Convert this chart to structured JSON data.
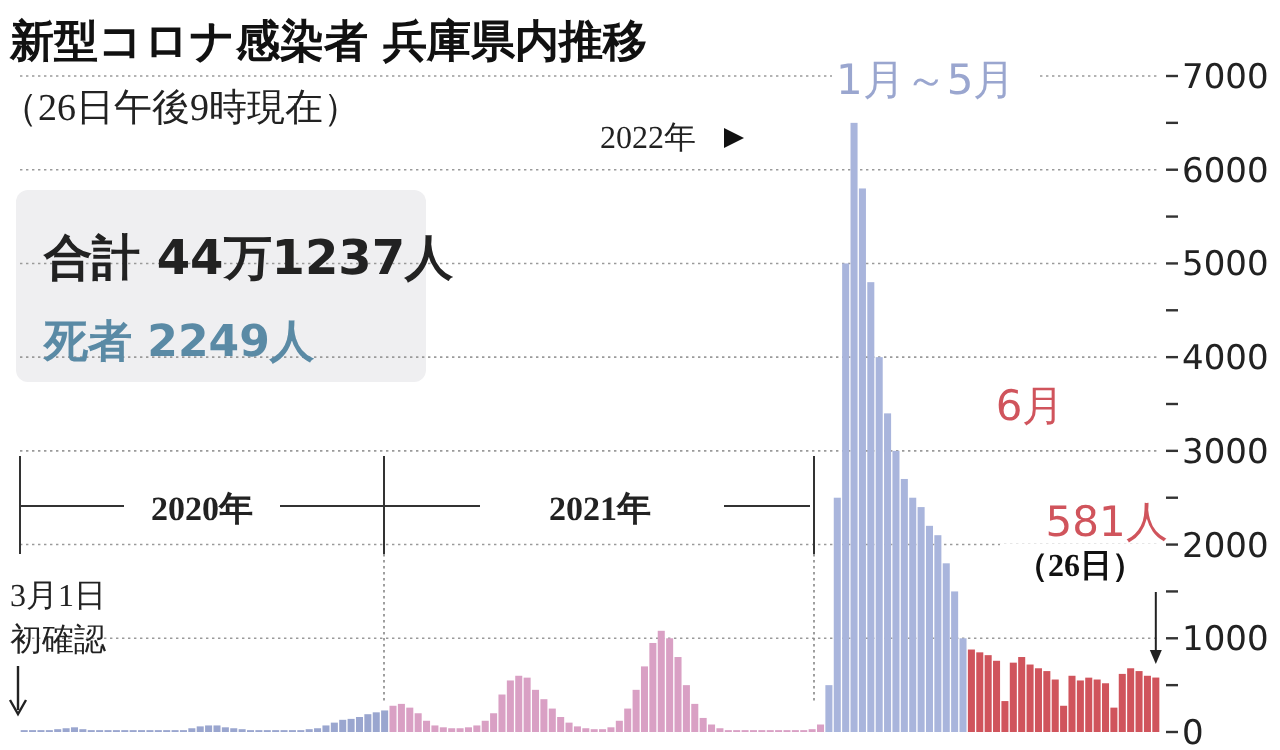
{
  "chart_data": {
    "type": "bar",
    "title": "新型コロナ感染者 兵庫県内推移",
    "subtitle": "（26日午後9時現在）",
    "categories": [
      null,
      null,
      null,
      null,
      null,
      null,
      null,
      null,
      null,
      null,
      null,
      null,
      null,
      null,
      null,
      null,
      null,
      null,
      null,
      null,
      null,
      null,
      null,
      null,
      null,
      null,
      null,
      null,
      null,
      null,
      null,
      null,
      null,
      null,
      null,
      null,
      null,
      null,
      null,
      null,
      null,
      null,
      null,
      null,
      null,
      null,
      null,
      null,
      null,
      null,
      null,
      null,
      null,
      null,
      null,
      null,
      null,
      null,
      null,
      null,
      null,
      null,
      null,
      null,
      null,
      null,
      null,
      null,
      null,
      null,
      null,
      null,
      null,
      null,
      null,
      null,
      null,
      null,
      null,
      null,
      null,
      null,
      null,
      null,
      null,
      null,
      null,
      null,
      null,
      null,
      null,
      null,
      null,
      null,
      null,
      null,
      null,
      null,
      null,
      null,
      null,
      null,
      null,
      null,
      null,
      null,
      null,
      null,
      null,
      null,
      null,
      null,
      null,
      null,
      null,
      null,
      null,
      null,
      null,
      null,
      null,
      null,
      null,
      null,
      null,
      null,
      null,
      null,
      null,
      null,
      null,
      null,
      null,
      null,
      null,
      null
    ],
    "values": [
      20,
      20,
      20,
      20,
      30,
      40,
      50,
      30,
      20,
      20,
      20,
      20,
      20,
      20,
      20,
      20,
      20,
      20,
      20,
      20,
      40,
      60,
      70,
      70,
      50,
      40,
      30,
      20,
      20,
      20,
      20,
      20,
      20,
      20,
      30,
      40,
      70,
      100,
      130,
      140,
      160,
      190,
      210,
      230,
      280,
      300,
      260,
      200,
      120,
      70,
      50,
      40,
      40,
      50,
      70,
      120,
      200,
      400,
      550,
      600,
      580,
      450,
      350,
      250,
      160,
      100,
      60,
      40,
      30,
      30,
      50,
      120,
      250,
      450,
      700,
      950,
      1080,
      1000,
      800,
      500,
      300,
      150,
      80,
      40,
      20,
      20,
      20,
      20,
      20,
      20,
      20,
      20,
      20,
      20,
      30,
      80,
      500,
      2500,
      5000,
      6500,
      5800,
      4800,
      4000,
      3400,
      3000,
      2700,
      2500,
      2400,
      2200,
      2100,
      1800,
      1500,
      1000,
      880,
      850,
      820,
      760,
      330,
      740,
      800,
      720,
      680,
      650,
      560,
      280,
      600,
      550,
      580,
      560,
      520,
      260,
      620,
      680,
      650,
      600,
      581
    ],
    "colors": [
      "#9aa6cf",
      "#9aa6cf",
      "#9aa6cf",
      "#9aa6cf",
      "#9aa6cf",
      "#9aa6cf",
      "#9aa6cf",
      "#9aa6cf",
      "#9aa6cf",
      "#9aa6cf",
      "#9aa6cf",
      "#9aa6cf",
      "#9aa6cf",
      "#9aa6cf",
      "#9aa6cf",
      "#9aa6cf",
      "#9aa6cf",
      "#9aa6cf",
      "#9aa6cf",
      "#9aa6cf",
      "#9aa6cf",
      "#9aa6cf",
      "#9aa6cf",
      "#9aa6cf",
      "#9aa6cf",
      "#9aa6cf",
      "#9aa6cf",
      "#9aa6cf",
      "#9aa6cf",
      "#9aa6cf",
      "#9aa6cf",
      "#9aa6cf",
      "#9aa6cf",
      "#9aa6cf",
      "#9aa6cf",
      "#9aa6cf",
      "#9aa6cf",
      "#9aa6cf",
      "#9aa6cf",
      "#9aa6cf",
      "#9aa6cf",
      "#9aa6cf",
      "#9aa6cf",
      "#9aa6cf",
      "#d9a0c4",
      "#d9a0c4",
      "#d9a0c4",
      "#d9a0c4",
      "#d9a0c4",
      "#d9a0c4",
      "#d9a0c4",
      "#d9a0c4",
      "#d9a0c4",
      "#d9a0c4",
      "#d9a0c4",
      "#d9a0c4",
      "#d9a0c4",
      "#d9a0c4",
      "#d9a0c4",
      "#d9a0c4",
      "#d9a0c4",
      "#d9a0c4",
      "#d9a0c4",
      "#d9a0c4",
      "#d9a0c4",
      "#d9a0c4",
      "#d9a0c4",
      "#d9a0c4",
      "#d9a0c4",
      "#d9a0c4",
      "#d9a0c4",
      "#d9a0c4",
      "#d9a0c4",
      "#d9a0c4",
      "#d9a0c4",
      "#d9a0c4",
      "#d9a0c4",
      "#d9a0c4",
      "#d9a0c4",
      "#d9a0c4",
      "#d9a0c4",
      "#d9a0c4",
      "#d9a0c4",
      "#d9a0c4",
      "#d9a0c4",
      "#d9a0c4",
      "#d9a0c4",
      "#d9a0c4",
      "#d9a0c4",
      "#d9a0c4",
      "#d9a0c4",
      "#d9a0c4",
      "#d9a0c4",
      "#d9a0c4",
      "#d9a0c4",
      "#d9a0c4",
      "#a9b5dc",
      "#a9b5dc",
      "#a9b5dc",
      "#a9b5dc",
      "#a9b5dc",
      "#a9b5dc",
      "#a9b5dc",
      "#a9b5dc",
      "#a9b5dc",
      "#a9b5dc",
      "#a9b5dc",
      "#a9b5dc",
      "#a9b5dc",
      "#a9b5dc",
      "#a9b5dc",
      "#a9b5dc",
      "#a9b5dc",
      "#d0545c",
      "#d0545c",
      "#d0545c",
      "#d0545c",
      "#d0545c",
      "#d0545c",
      "#d0545c",
      "#d0545c",
      "#d0545c",
      "#d0545c",
      "#d0545c",
      "#d0545c",
      "#d0545c",
      "#d0545c",
      "#d0545c",
      "#d0545c",
      "#d0545c",
      "#d0545c",
      "#d0545c",
      "#d0545c",
      "#d0545c",
      "#d0545c",
      "#d0545c"
    ],
    "value_labels": [
      null,
      null,
      null,
      null,
      null,
      null,
      null,
      null,
      null,
      null,
      null,
      null,
      null,
      null,
      null,
      null,
      null,
      null,
      null,
      null,
      null,
      null,
      null,
      null,
      null,
      null,
      null,
      null,
      null,
      null,
      null,
      null,
      null,
      null,
      null,
      null,
      null,
      null,
      null,
      null,
      null,
      null,
      null,
      null,
      null,
      null,
      null,
      null,
      null,
      null,
      null,
      null,
      null,
      null,
      null,
      null,
      null,
      null,
      null,
      null,
      null,
      null,
      null,
      null,
      null,
      null,
      null,
      null,
      null,
      null,
      null,
      null,
      null,
      null,
      null,
      null,
      null,
      null,
      null,
      null,
      null,
      null,
      null,
      null,
      null,
      null,
      null,
      null,
      null,
      null,
      null,
      null,
      null,
      null,
      null,
      null,
      null,
      null,
      null,
      null,
      null,
      null,
      null,
      null,
      null,
      null,
      null,
      null,
      null,
      null,
      null,
      null,
      null,
      null,
      null,
      null,
      null,
      null,
      null,
      null,
      null,
      null,
      null,
      null,
      null,
      null,
      null,
      null,
      null,
      null,
      null,
      null,
      null,
      null,
      null,
      "581人"
    ],
    "ylim": [
      0,
      7000
    ],
    "yticks": [
      0,
      {
        "value": 500,
        "label": null
      },
      1000,
      {
        "value": 1500,
        "label": null
      },
      2000,
      {
        "value": 2500,
        "label": null
      },
      3000,
      {
        "value": 3500,
        "label": null
      },
      4000,
      {
        "value": 4500,
        "label": null
      },
      5000,
      {
        "value": 5500,
        "label": null
      },
      6000,
      {
        "value": 6500,
        "label": null
      },
      7000
    ],
    "grid": "y",
    "annotations": [
      "合計 44万1237人",
      "死者 2249人",
      "2020年",
      "2021年",
      "3月1日",
      "初確認",
      "2022年",
      "1月～5月",
      "6月",
      "（26日）"
    ]
  }
}
